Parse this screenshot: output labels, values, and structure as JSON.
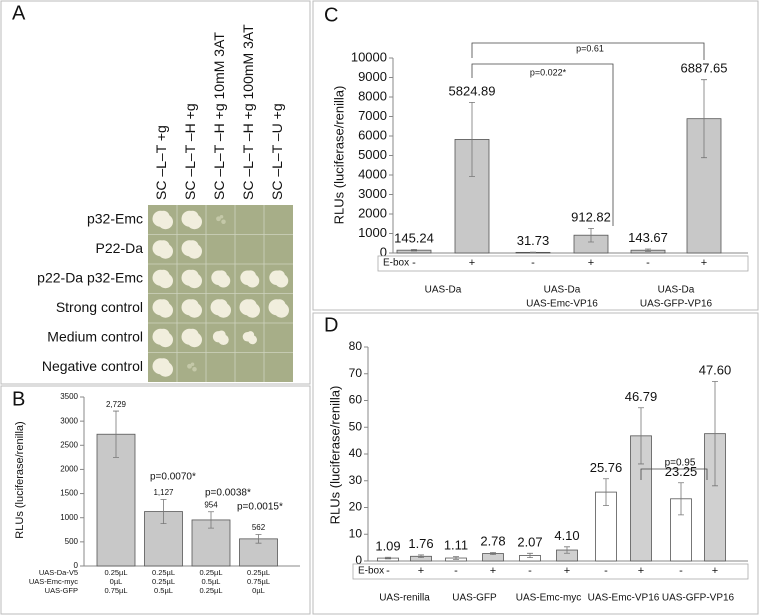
{
  "panel_a": {
    "label": "A",
    "columns": [
      "SC –L–T +g",
      "SC –L–T –H +g",
      "SC –L–T –H +g 10mM 3AT",
      "SC –L–T –H +g 100mM 3AT",
      "SC –L–T –U +g"
    ],
    "rows": [
      "p32-Emc",
      "P22-Da",
      "p22-Da p32-Emc",
      "Strong control",
      "Medium control",
      "Negative control"
    ]
  },
  "chart_data": [
    {
      "panel": "B",
      "type": "bar",
      "y_label": "RLUs (luciferase/renilla)",
      "ylim": [
        0,
        3500
      ],
      "yticks": [
        0,
        500,
        1000,
        1500,
        2000,
        2500,
        3000,
        3500
      ],
      "values": [
        2729,
        1127,
        954,
        562
      ],
      "value_labels": [
        "2,729",
        "1,127",
        "954",
        "562"
      ],
      "errors": [
        480,
        250,
        170,
        90
      ],
      "color": "#c8c8c8",
      "annotations": [
        "p=0.0070*",
        "p=0.0038*",
        "p=0.0015*"
      ],
      "table": [
        {
          "name": "UAS-Da-V5",
          "cells": [
            "0.25µL",
            "0.25µL",
            "0.25µL",
            "0.25µL"
          ]
        },
        {
          "name": "UAS-Emc-myc",
          "cells": [
            "0µL",
            "0.25µL",
            "0.5µL",
            "0.75µL"
          ]
        },
        {
          "name": "UAS-GFP",
          "cells": [
            "0.75µL",
            "0.5µL",
            "0.25µL",
            "0µL"
          ]
        }
      ]
    },
    {
      "panel": "C",
      "type": "bar",
      "y_label": "RLUs (luciferase/renilla)",
      "ylim": [
        0,
        10000
      ],
      "yticks": [
        0,
        1000,
        2000,
        3000,
        4000,
        5000,
        6000,
        7000,
        8000,
        9000,
        10000
      ],
      "values": [
        145.24,
        5824.89,
        31.73,
        912.82,
        143.67,
        6887.65
      ],
      "errors": [
        40,
        1900,
        10,
        350,
        60,
        2000
      ],
      "color": "#c8c8c8",
      "ebox_label": "E-box",
      "ebox": [
        "-",
        "+",
        "-",
        "+",
        "-",
        "+"
      ],
      "groups": [
        [
          "UAS-Da"
        ],
        [
          "UAS-Da",
          "UAS-Emc-VP16"
        ],
        [
          "UAS-Da",
          "UAS-GFP-VP16"
        ]
      ],
      "annotations": [
        "p=0.022*",
        "p=0.61"
      ]
    },
    {
      "panel": "D",
      "type": "bar",
      "y_label": "RLUs (luciferase/renilla)",
      "ylim": [
        0,
        80
      ],
      "yticks": [
        0,
        10,
        20,
        30,
        40,
        50,
        60,
        70,
        80
      ],
      "values": [
        1.09,
        1.76,
        1.11,
        2.78,
        2.07,
        4.1,
        25.76,
        46.79,
        23.25,
        47.6
      ],
      "value_labels": [
        "1.09",
        "1.76",
        "1.11",
        "2.78",
        "2.07",
        "4.10",
        "25.76",
        "46.79",
        "23.25",
        "47.60"
      ],
      "errors": [
        0.3,
        0.5,
        0.5,
        0.4,
        0.8,
        1.2,
        5,
        10.5,
        6,
        19.5
      ],
      "colors": [
        "#ffffff",
        "#d0d0d0",
        "#ffffff",
        "#d0d0d0",
        "#ffffff",
        "#d0d0d0",
        "#ffffff",
        "#d0d0d0",
        "#ffffff",
        "#d0d0d0"
      ],
      "ebox_label": "E-box",
      "ebox": [
        "-",
        "+",
        "-",
        "+",
        "-",
        "+",
        "-",
        "+",
        "-",
        "+"
      ],
      "groups": [
        [
          "UAS-renilla"
        ],
        [
          "UAS-GFP"
        ],
        [
          "UAS-Emc-myc"
        ],
        [
          "UAS-Emc-VP16"
        ],
        [
          "UAS-GFP-VP16"
        ]
      ],
      "annotations": [
        "p=0.95"
      ]
    }
  ]
}
